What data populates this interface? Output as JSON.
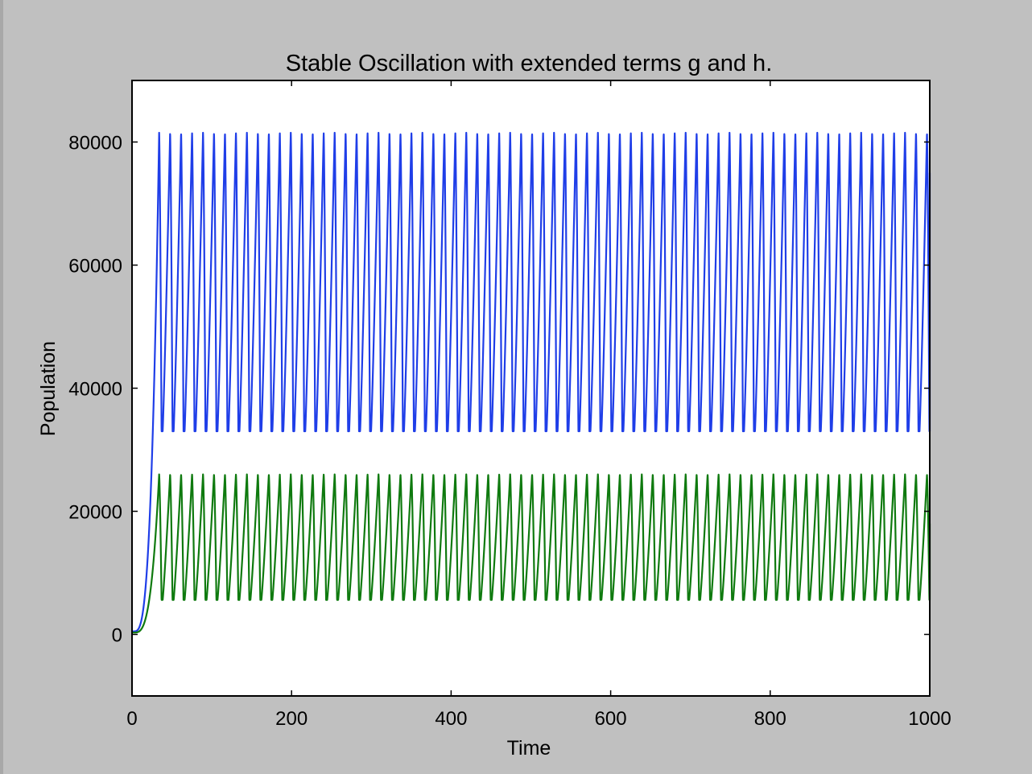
{
  "chart_data": {
    "type": "line",
    "title": "Stable Oscillation with extended terms g and h.",
    "xlabel": "Time",
    "ylabel": "Population",
    "xlim": [
      0,
      1000
    ],
    "ylim": [
      -10000,
      90000
    ],
    "xticks": [
      "0",
      "200",
      "400",
      "600",
      "800",
      "1000"
    ],
    "yticks": [
      "0",
      "20000",
      "40000",
      "60000",
      "80000"
    ],
    "xtick_values": [
      0,
      200,
      400,
      600,
      800,
      1000
    ],
    "ytick_values": [
      0,
      20000,
      40000,
      60000,
      80000
    ],
    "grid": false,
    "legend": "none",
    "series": [
      {
        "color": "#1f3ee8",
        "start": 500,
        "rise_end_x": 34,
        "peak": 81500,
        "trough": 33000,
        "period": 13.75,
        "end_x": 1000,
        "end_value": 75000
      },
      {
        "color": "#0f7a0f",
        "start": 300,
        "rise_end_x": 34,
        "peak": 26000,
        "trough": 5600,
        "period": 13.75,
        "end_x": 1000,
        "end_value": 18000
      }
    ]
  }
}
